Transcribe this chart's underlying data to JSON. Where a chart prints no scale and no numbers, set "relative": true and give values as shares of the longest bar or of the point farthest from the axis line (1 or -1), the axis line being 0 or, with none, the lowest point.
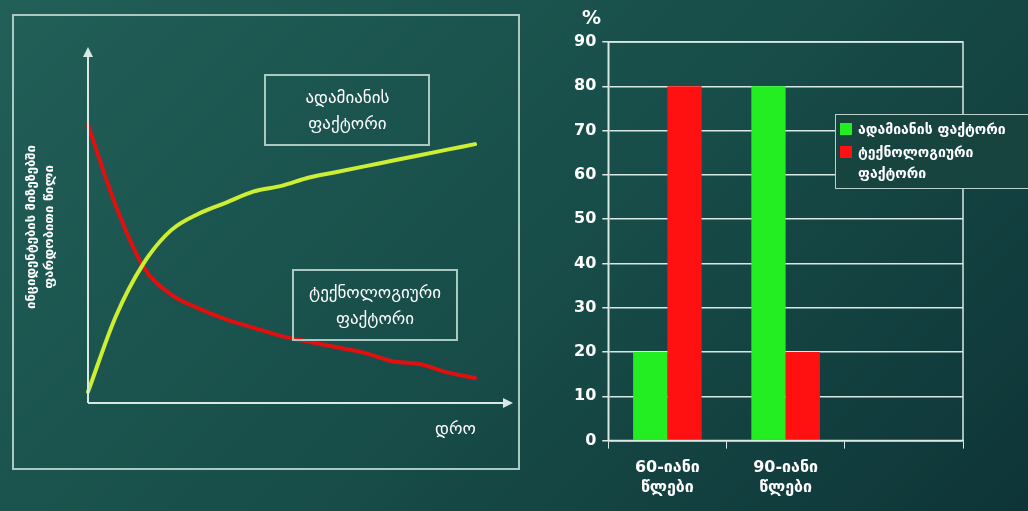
{
  "chart_data": [
    {
      "type": "line",
      "relative": true,
      "xlabel": "დრო",
      "ylabel": "ინციდენტების მიზეზებში ფარდობითი წილი",
      "categories": [
        null,
        null,
        null,
        null,
        null,
        null,
        null,
        null,
        null,
        null,
        null,
        null,
        null,
        null,
        null
      ],
      "series": [
        {
          "name": "ადამიანის ფაქტორი",
          "color": "#ccee33",
          "values": [
            0.04,
            0.31,
            0.5,
            0.62,
            0.68,
            0.72,
            0.76,
            0.78,
            0.81,
            0.83,
            0.85,
            0.87,
            0.89,
            0.91,
            0.93
          ]
        },
        {
          "name": "ტექნოლოგიური ფაქტორი",
          "color": "#e01010",
          "values": [
            1,
            0.71,
            0.49,
            0.39,
            0.34,
            0.3,
            0.27,
            0.24,
            0.22,
            0.2,
            0.18,
            0.15,
            0.14,
            0.11,
            0.09
          ]
        }
      ],
      "grid": false,
      "legend": false
    },
    {
      "type": "bar",
      "ylabel": "%",
      "categories": [
        "60-იანი წლები",
        "90-იანი წლები",
        null
      ],
      "series": [
        {
          "name": "ადამიანის ფაქტორი",
          "color": "#22ee22",
          "values": [
            20,
            80,
            null
          ]
        },
        {
          "name": "ტექნოლოგიური ფაქტორი",
          "color": "#ff1111",
          "values": [
            80,
            20,
            null
          ]
        }
      ],
      "ylim": [
        0,
        90
      ],
      "yticks": [
        0,
        10,
        20,
        30,
        40,
        50,
        60,
        70,
        80,
        90
      ],
      "grid": "y",
      "legend": "right"
    }
  ]
}
